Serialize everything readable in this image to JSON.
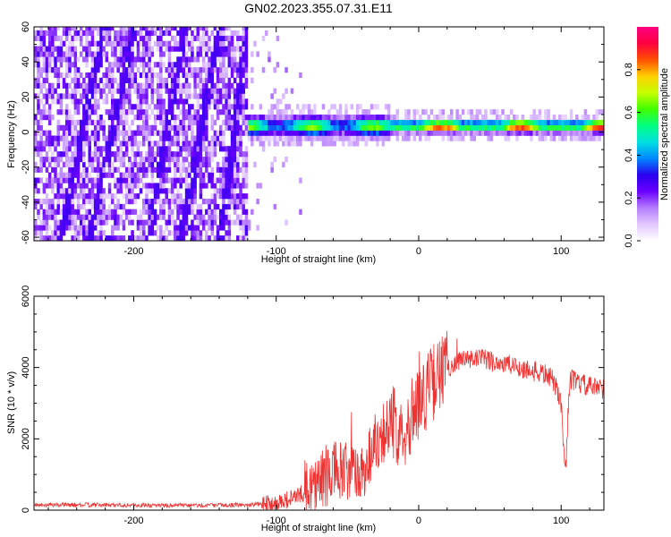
{
  "title": "GN02.2023.355.07.31.E11",
  "chart_data": [
    {
      "type": "heatmap",
      "xlabel": "Height of straight line (km)",
      "ylabel": "Frequency (Hz)",
      "xlim": [
        -270,
        130
      ],
      "ylim": [
        -62,
        60
      ],
      "xticks": [
        -200,
        -100,
        0,
        100
      ],
      "yticks": [
        -60,
        -40,
        -20,
        0,
        20,
        40,
        60
      ],
      "colorbar": {
        "label": "Normalized spectral amplitude",
        "range": [
          0,
          1
        ],
        "ticks": [
          "0.0",
          "0.2",
          "0.4",
          "0.6",
          "0.8"
        ],
        "colors": [
          "#ffffff",
          "#e2c8ff",
          "#b57cff",
          "#6a00ff",
          "#2a00ee",
          "#0088ff",
          "#00e0e0",
          "#00ff80",
          "#40ff00",
          "#c8ff00",
          "#ffd000",
          "#ff5000",
          "#ff0040",
          "#ff0080"
        ]
      },
      "signal_band": {
        "x_start": -120,
        "x_end": 130,
        "center_hz": 2,
        "half_width_hz": 5
      },
      "noise_region": {
        "x_start": -270,
        "x_end": -120,
        "range_hz": [
          -62,
          60
        ]
      }
    },
    {
      "type": "line",
      "xlabel": "Height of straight line (km)",
      "ylabel": "SNR (10 * v/v)",
      "xlim": [
        -270,
        130
      ],
      "ylim": [
        0,
        6000
      ],
      "xticks": [
        -200,
        -100,
        0,
        100
      ],
      "yticks": [
        0,
        2000,
        4000,
        6000
      ],
      "color": "#ee3333",
      "series": [
        {
          "x": [
            -270,
            -240,
            -200,
            -160,
            -120,
            -100,
            -90,
            -80,
            -70,
            -60,
            -50,
            -40,
            -30,
            -20,
            -10,
            0,
            10,
            20,
            30,
            40,
            50,
            60,
            70,
            80,
            90,
            95,
            100,
            103,
            106,
            110,
            120,
            130
          ],
          "values": [
            150,
            150,
            140,
            130,
            150,
            200,
            320,
            500,
            800,
            1100,
            1000,
            1000,
            2000,
            2400,
            2300,
            3000,
            3600,
            4000,
            4200,
            4250,
            4200,
            4100,
            4000,
            3900,
            3800,
            3600,
            3000,
            1000,
            3700,
            3600,
            3450,
            3400
          ]
        }
      ]
    }
  ]
}
